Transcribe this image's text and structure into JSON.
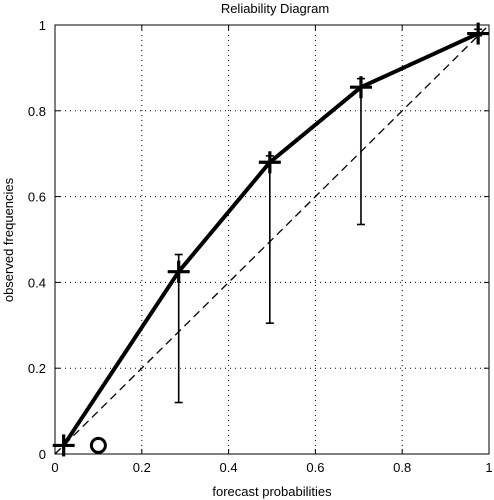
{
  "chart_data": {
    "type": "line",
    "title": "Reliability Diagram",
    "xlabel": "forecast probabilities",
    "ylabel": "observed frequencies",
    "xlim": [
      0,
      1
    ],
    "ylim": [
      0,
      1
    ],
    "grid": true,
    "legend": "none",
    "x_ticks": [
      "0",
      "0.2",
      "0.4",
      "0.6",
      "0.8",
      "1"
    ],
    "y_ticks": [
      "0",
      "0.2",
      "0.4",
      "0.6",
      "0.8",
      "1"
    ],
    "series": [
      {
        "x": [
          0.02,
          0.285,
          0.495,
          0.705,
          0.975
        ],
        "y": [
          0.02,
          0.425,
          0.68,
          0.855,
          0.98
        ],
        "style": "solid-thick",
        "marker": "plus"
      }
    ],
    "uncertainty_bars": {
      "x": [
        0.285,
        0.495,
        0.705,
        0.975
      ],
      "low": [
        0.12,
        0.305,
        0.535,
        0.975
      ],
      "high": [
        0.465,
        0.695,
        0.875,
        0.99
      ]
    },
    "reference_line": {
      "x": [
        0,
        1
      ],
      "y": [
        0,
        1
      ],
      "style": "dashed"
    },
    "extra_points": [
      {
        "x": 0.1,
        "y": 0.02,
        "marker": "circle"
      }
    ],
    "colors": {
      "line": "#000000",
      "grid": "#000000",
      "background": "#ffffff"
    }
  }
}
